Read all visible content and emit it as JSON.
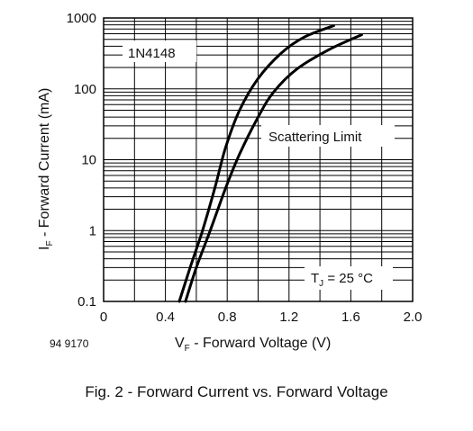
{
  "chart_data": {
    "type": "line",
    "title": "",
    "xlabel": {
      "main": "V",
      "sub": "F",
      "rest": " - Forward Voltage (V)"
    },
    "ylabel": {
      "main": "I",
      "sub": "F",
      "rest": " - Forward Current (mA)"
    },
    "xlim": [
      0,
      2.0
    ],
    "ylim": [
      0.1,
      1000
    ],
    "yscale": "log",
    "grid": true,
    "x_ticks": [
      "0",
      "0.4",
      "0.8",
      "1.2",
      "1.6",
      "2.0"
    ],
    "y_ticks": [
      "0.1",
      "1",
      "10",
      "100",
      "1000"
    ],
    "series": [
      {
        "x": [
          0.49,
          0.56,
          0.64,
          0.72,
          0.79,
          0.88,
          1.0,
          1.15,
          1.3,
          1.49
        ],
        "y": [
          0.1,
          0.3,
          1,
          4,
          15,
          50,
          140,
          320,
          540,
          780
        ]
      },
      {
        "x": [
          0.53,
          0.6,
          0.69,
          0.79,
          0.88,
          1.0,
          1.1,
          1.25,
          1.45,
          1.67
        ],
        "y": [
          0.1,
          0.3,
          1,
          4,
          12,
          40,
          90,
          190,
          350,
          580
        ]
      }
    ],
    "annotations": {
      "part": "1N4148",
      "limit": "Scattering Limit",
      "temp": {
        "main": "T",
        "sub": "J",
        "rest": " = 25 °C"
      }
    },
    "figure_number": "94 9170"
  },
  "caption": "Fig. 2 - Forward Current vs. Forward Voltage"
}
